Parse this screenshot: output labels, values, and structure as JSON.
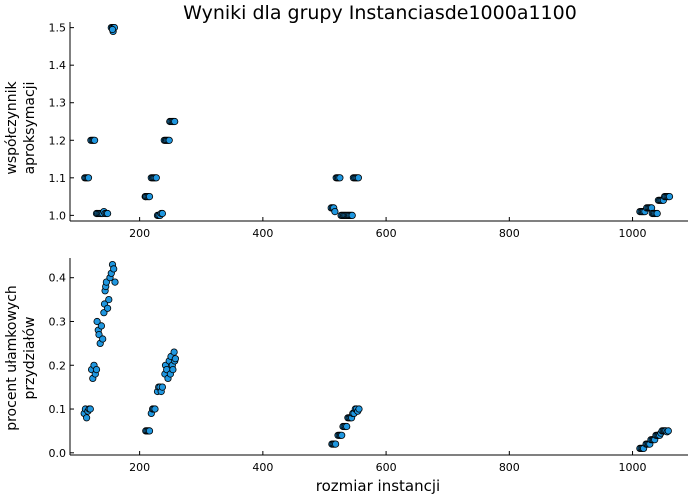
{
  "title": "Wyniki dla grupy Instanciasde1000a1100",
  "colors": {
    "marker": "#1f97e0",
    "marker_stroke": "#000000",
    "axis": "#000000",
    "background": "#ffffff"
  },
  "chart_data": [
    {
      "type": "scatter",
      "title": "Wyniki dla grupy Instanciasde1000a1100",
      "ylabel_lines": [
        "współczynnik",
        "aproksymacji"
      ],
      "xlabel": "",
      "xlim": [
        87,
        1090
      ],
      "ylim": [
        0.985,
        1.515
      ],
      "x_ticks": [
        200,
        400,
        600,
        800,
        1000
      ],
      "y_ticks": [
        1.0,
        1.1,
        1.2,
        1.3,
        1.4,
        1.5
      ],
      "y_tick_labels": [
        "1.0",
        "1.1",
        "1.2",
        "1.3",
        "1.4",
        "1.5"
      ],
      "grid": false,
      "legend": "none",
      "series": [
        {
          "x": [
            154,
            156,
            157,
            158,
            159,
            156,
            111,
            113,
            115,
            117,
            121,
            123,
            125,
            127,
            130,
            132,
            134,
            136,
            138,
            140,
            142,
            144,
            146,
            148,
            209,
            210,
            212,
            214,
            216,
            219,
            221,
            223,
            225,
            227,
            229,
            231,
            233,
            235,
            237,
            240,
            242,
            244,
            246,
            248,
            249,
            251,
            253,
            255,
            257,
            511,
            513,
            515,
            517,
            519,
            521,
            523,
            525,
            527,
            529,
            531,
            533,
            535,
            537,
            539,
            541,
            543,
            545,
            547,
            549,
            551,
            553,
            555,
            1012,
            1014,
            1016,
            1018,
            1020,
            1023,
            1025,
            1027,
            1029,
            1031,
            1032,
            1034,
            1036,
            1038,
            1040,
            1042,
            1044,
            1046,
            1048,
            1050,
            1052,
            1054,
            1056,
            1058,
            1060
          ],
          "y": [
            1.5,
            1.5,
            1.49,
            1.5,
            1.5,
            1.495,
            1.1,
            1.1,
            1.1,
            1.1,
            1.2,
            1.2,
            1.2,
            1.2,
            1.005,
            1.005,
            1.005,
            1.005,
            1.005,
            1.005,
            1.01,
            1.005,
            1.005,
            1.005,
            1.05,
            1.05,
            1.05,
            1.05,
            1.05,
            1.1,
            1.1,
            1.1,
            1.1,
            1.1,
            1.0,
            1.0,
            1.0,
            1.005,
            1.005,
            1.2,
            1.2,
            1.2,
            1.2,
            1.2,
            1.25,
            1.25,
            1.25,
            1.25,
            1.25,
            1.02,
            1.02,
            1.02,
            1.01,
            1.1,
            1.1,
            1.1,
            1.1,
            1.0,
            1.0,
            1.0,
            1.0,
            1.0,
            1.0,
            1.0,
            1.0,
            1.0,
            1.0,
            1.1,
            1.1,
            1.1,
            1.1,
            1.1,
            1.01,
            1.01,
            1.01,
            1.01,
            1.01,
            1.02,
            1.02,
            1.02,
            1.02,
            1.02,
            1.005,
            1.005,
            1.005,
            1.005,
            1.005,
            1.04,
            1.04,
            1.04,
            1.04,
            1.04,
            1.05,
            1.05,
            1.05,
            1.05,
            1.05
          ]
        }
      ]
    },
    {
      "type": "scatter",
      "ylabel_lines": [
        "procent ułamkowych",
        "przydziałów"
      ],
      "xlabel": "rozmiar instancji",
      "xlim": [
        87,
        1090
      ],
      "ylim": [
        -0.005,
        0.445
      ],
      "x_ticks": [
        200,
        400,
        600,
        800,
        1000
      ],
      "y_ticks": [
        0.0,
        0.1,
        0.2,
        0.3,
        0.4
      ],
      "y_tick_labels": [
        "0.0",
        "0.1",
        "0.2",
        "0.3",
        "0.4"
      ],
      "grid": false,
      "legend": "none",
      "series": [
        {
          "x": [
            110,
            112,
            114,
            116,
            118,
            120,
            122,
            124,
            126,
            128,
            130,
            131,
            133,
            134,
            136,
            138,
            140,
            142,
            143,
            144,
            145,
            146,
            148,
            150,
            152,
            154,
            156,
            158,
            160,
            210,
            212,
            214,
            216,
            219,
            221,
            223,
            225,
            229,
            231,
            233,
            235,
            237,
            241,
            242,
            244,
            246,
            248,
            250,
            251,
            253,
            254,
            256,
            257,
            258,
            512,
            514,
            516,
            518,
            522,
            524,
            526,
            528,
            530,
            532,
            534,
            536,
            538,
            540,
            542,
            544,
            546,
            548,
            550,
            552,
            554,
            556,
            1012,
            1014,
            1016,
            1018,
            1022,
            1024,
            1026,
            1028,
            1030,
            1032,
            1034,
            1036,
            1038,
            1040,
            1042,
            1044,
            1046,
            1048,
            1050,
            1052,
            1054,
            1056,
            1058
          ],
          "y": [
            0.09,
            0.1,
            0.08,
            0.095,
            0.1,
            0.1,
            0.19,
            0.17,
            0.2,
            0.18,
            0.19,
            0.3,
            0.28,
            0.27,
            0.25,
            0.29,
            0.26,
            0.32,
            0.34,
            0.37,
            0.38,
            0.39,
            0.33,
            0.35,
            0.4,
            0.41,
            0.43,
            0.42,
            0.39,
            0.05,
            0.05,
            0.05,
            0.05,
            0.09,
            0.1,
            0.1,
            0.1,
            0.14,
            0.15,
            0.15,
            0.14,
            0.15,
            0.18,
            0.2,
            0.19,
            0.17,
            0.21,
            0.18,
            0.22,
            0.2,
            0.19,
            0.23,
            0.21,
            0.215,
            0.02,
            0.02,
            0.02,
            0.02,
            0.04,
            0.04,
            0.04,
            0.04,
            0.06,
            0.06,
            0.06,
            0.06,
            0.08,
            0.08,
            0.08,
            0.08,
            0.09,
            0.09,
            0.1,
            0.1,
            0.095,
            0.1,
            0.01,
            0.01,
            0.01,
            0.01,
            0.02,
            0.02,
            0.02,
            0.02,
            0.03,
            0.03,
            0.03,
            0.03,
            0.04,
            0.04,
            0.04,
            0.04,
            0.045,
            0.05,
            0.05,
            0.05,
            0.05,
            0.048,
            0.05
          ]
        }
      ]
    }
  ]
}
